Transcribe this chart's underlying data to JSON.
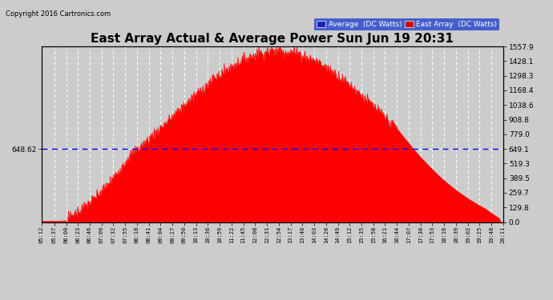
{
  "title": "East Array Actual & Average Power Sun Jun 19 20:31",
  "copyright": "Copyright 2016 Cartronics.com",
  "average_value": 648.62,
  "y_right_ticks": [
    0.0,
    129.8,
    259.7,
    389.5,
    519.3,
    649.1,
    779.0,
    908.8,
    1038.6,
    1168.4,
    1298.3,
    1428.1,
    1557.9
  ],
  "y_right_labels": [
    "0.0",
    "129.8",
    "259.7",
    "389.5",
    "519.3",
    "649.1",
    "779.0",
    "908.8",
    "1038.6",
    "1168.4",
    "1298.3",
    "1428.1",
    "1557.9"
  ],
  "y_max": 1557.9,
  "background_color": "#cccccc",
  "plot_bg_color": "#cccccc",
  "grid_color": "white",
  "area_color": "#ff0000",
  "avg_line_color": "#0000ff",
  "title_fontsize": 11,
  "legend_avg_color": "#2222bb",
  "legend_east_color": "#cc0000",
  "x_labels": [
    "05:12",
    "05:37",
    "06:00",
    "06:23",
    "06:46",
    "07:09",
    "07:32",
    "07:55",
    "08:18",
    "08:41",
    "09:04",
    "09:27",
    "09:50",
    "10:13",
    "10:36",
    "10:59",
    "11:22",
    "11:45",
    "12:08",
    "12:31",
    "12:54",
    "13:17",
    "13:40",
    "14:03",
    "14:26",
    "14:49",
    "15:12",
    "15:35",
    "15:58",
    "16:21",
    "16:44",
    "17:07",
    "17:30",
    "17:53",
    "18:16",
    "18:39",
    "19:02",
    "19:25",
    "19:48",
    "20:11"
  ],
  "peak_time_min": 773,
  "sigma": 210,
  "peak_value": 1520
}
